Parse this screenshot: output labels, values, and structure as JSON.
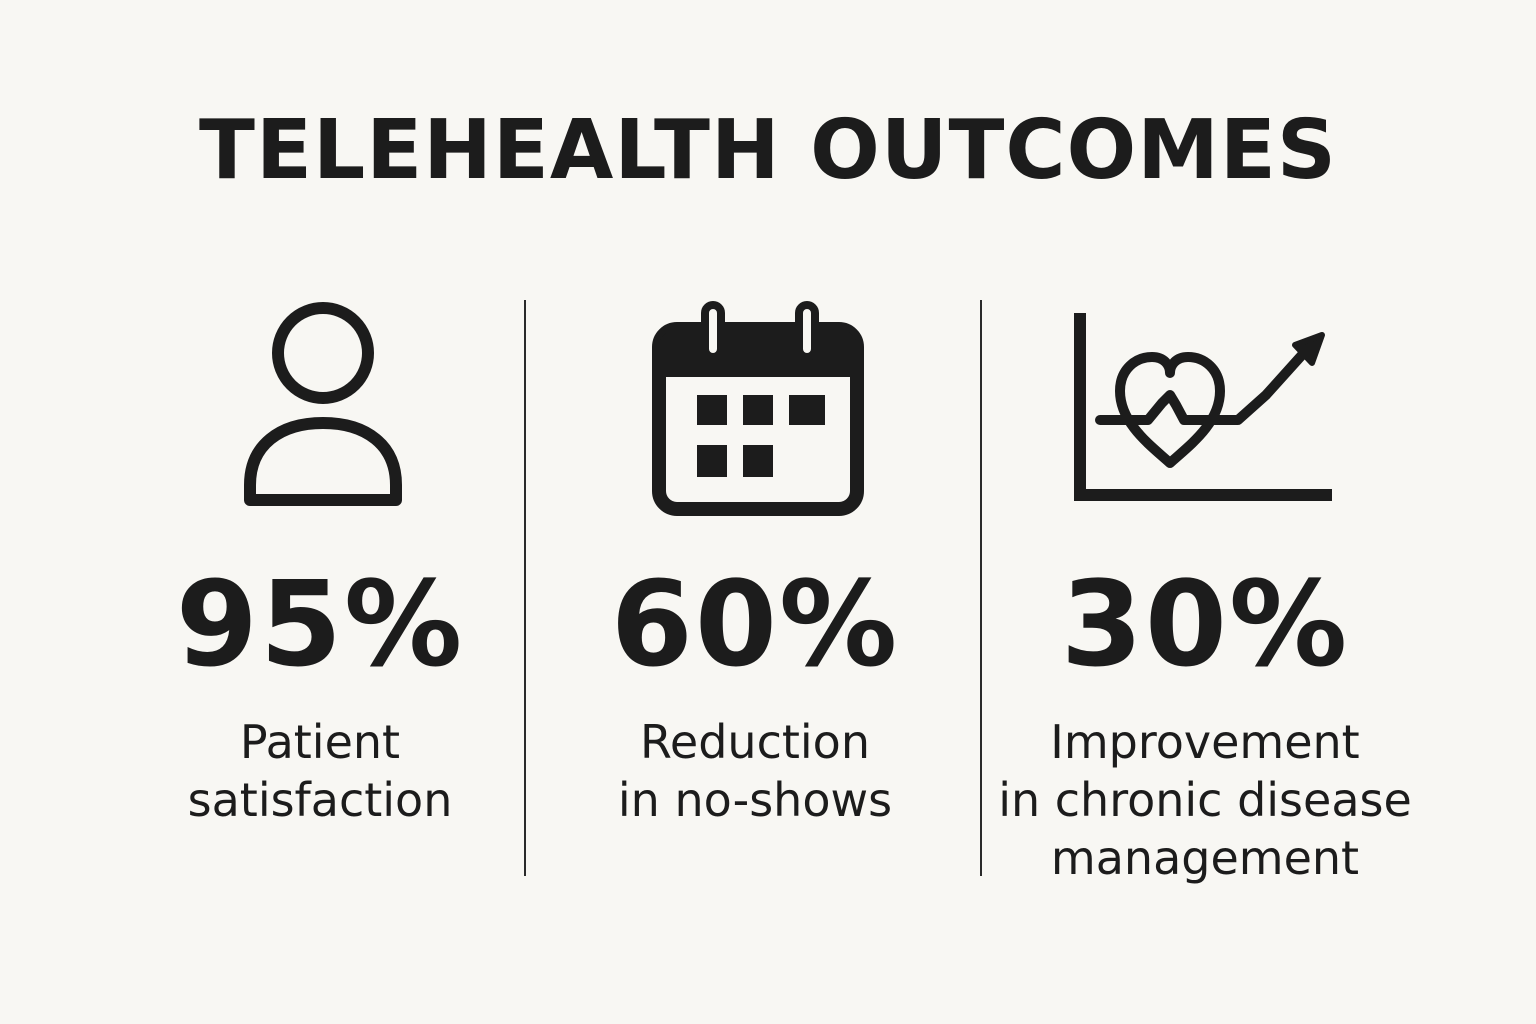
{
  "title": "TELEHEALTH OUTCOMES",
  "stats": [
    {
      "icon": "person-icon",
      "value": "95%",
      "label_lines": [
        "Patient",
        "satisfaction"
      ]
    },
    {
      "icon": "calendar-icon",
      "value": "60%",
      "label_lines": [
        "Reduction",
        "in no-shows"
      ]
    },
    {
      "icon": "heart-trend-chart-icon",
      "value": "30%",
      "label_lines": [
        "Improvement",
        "in chronic disease",
        "management"
      ]
    }
  ],
  "colors": {
    "background": "#f8f7f3",
    "foreground": "#1c1c1c"
  }
}
